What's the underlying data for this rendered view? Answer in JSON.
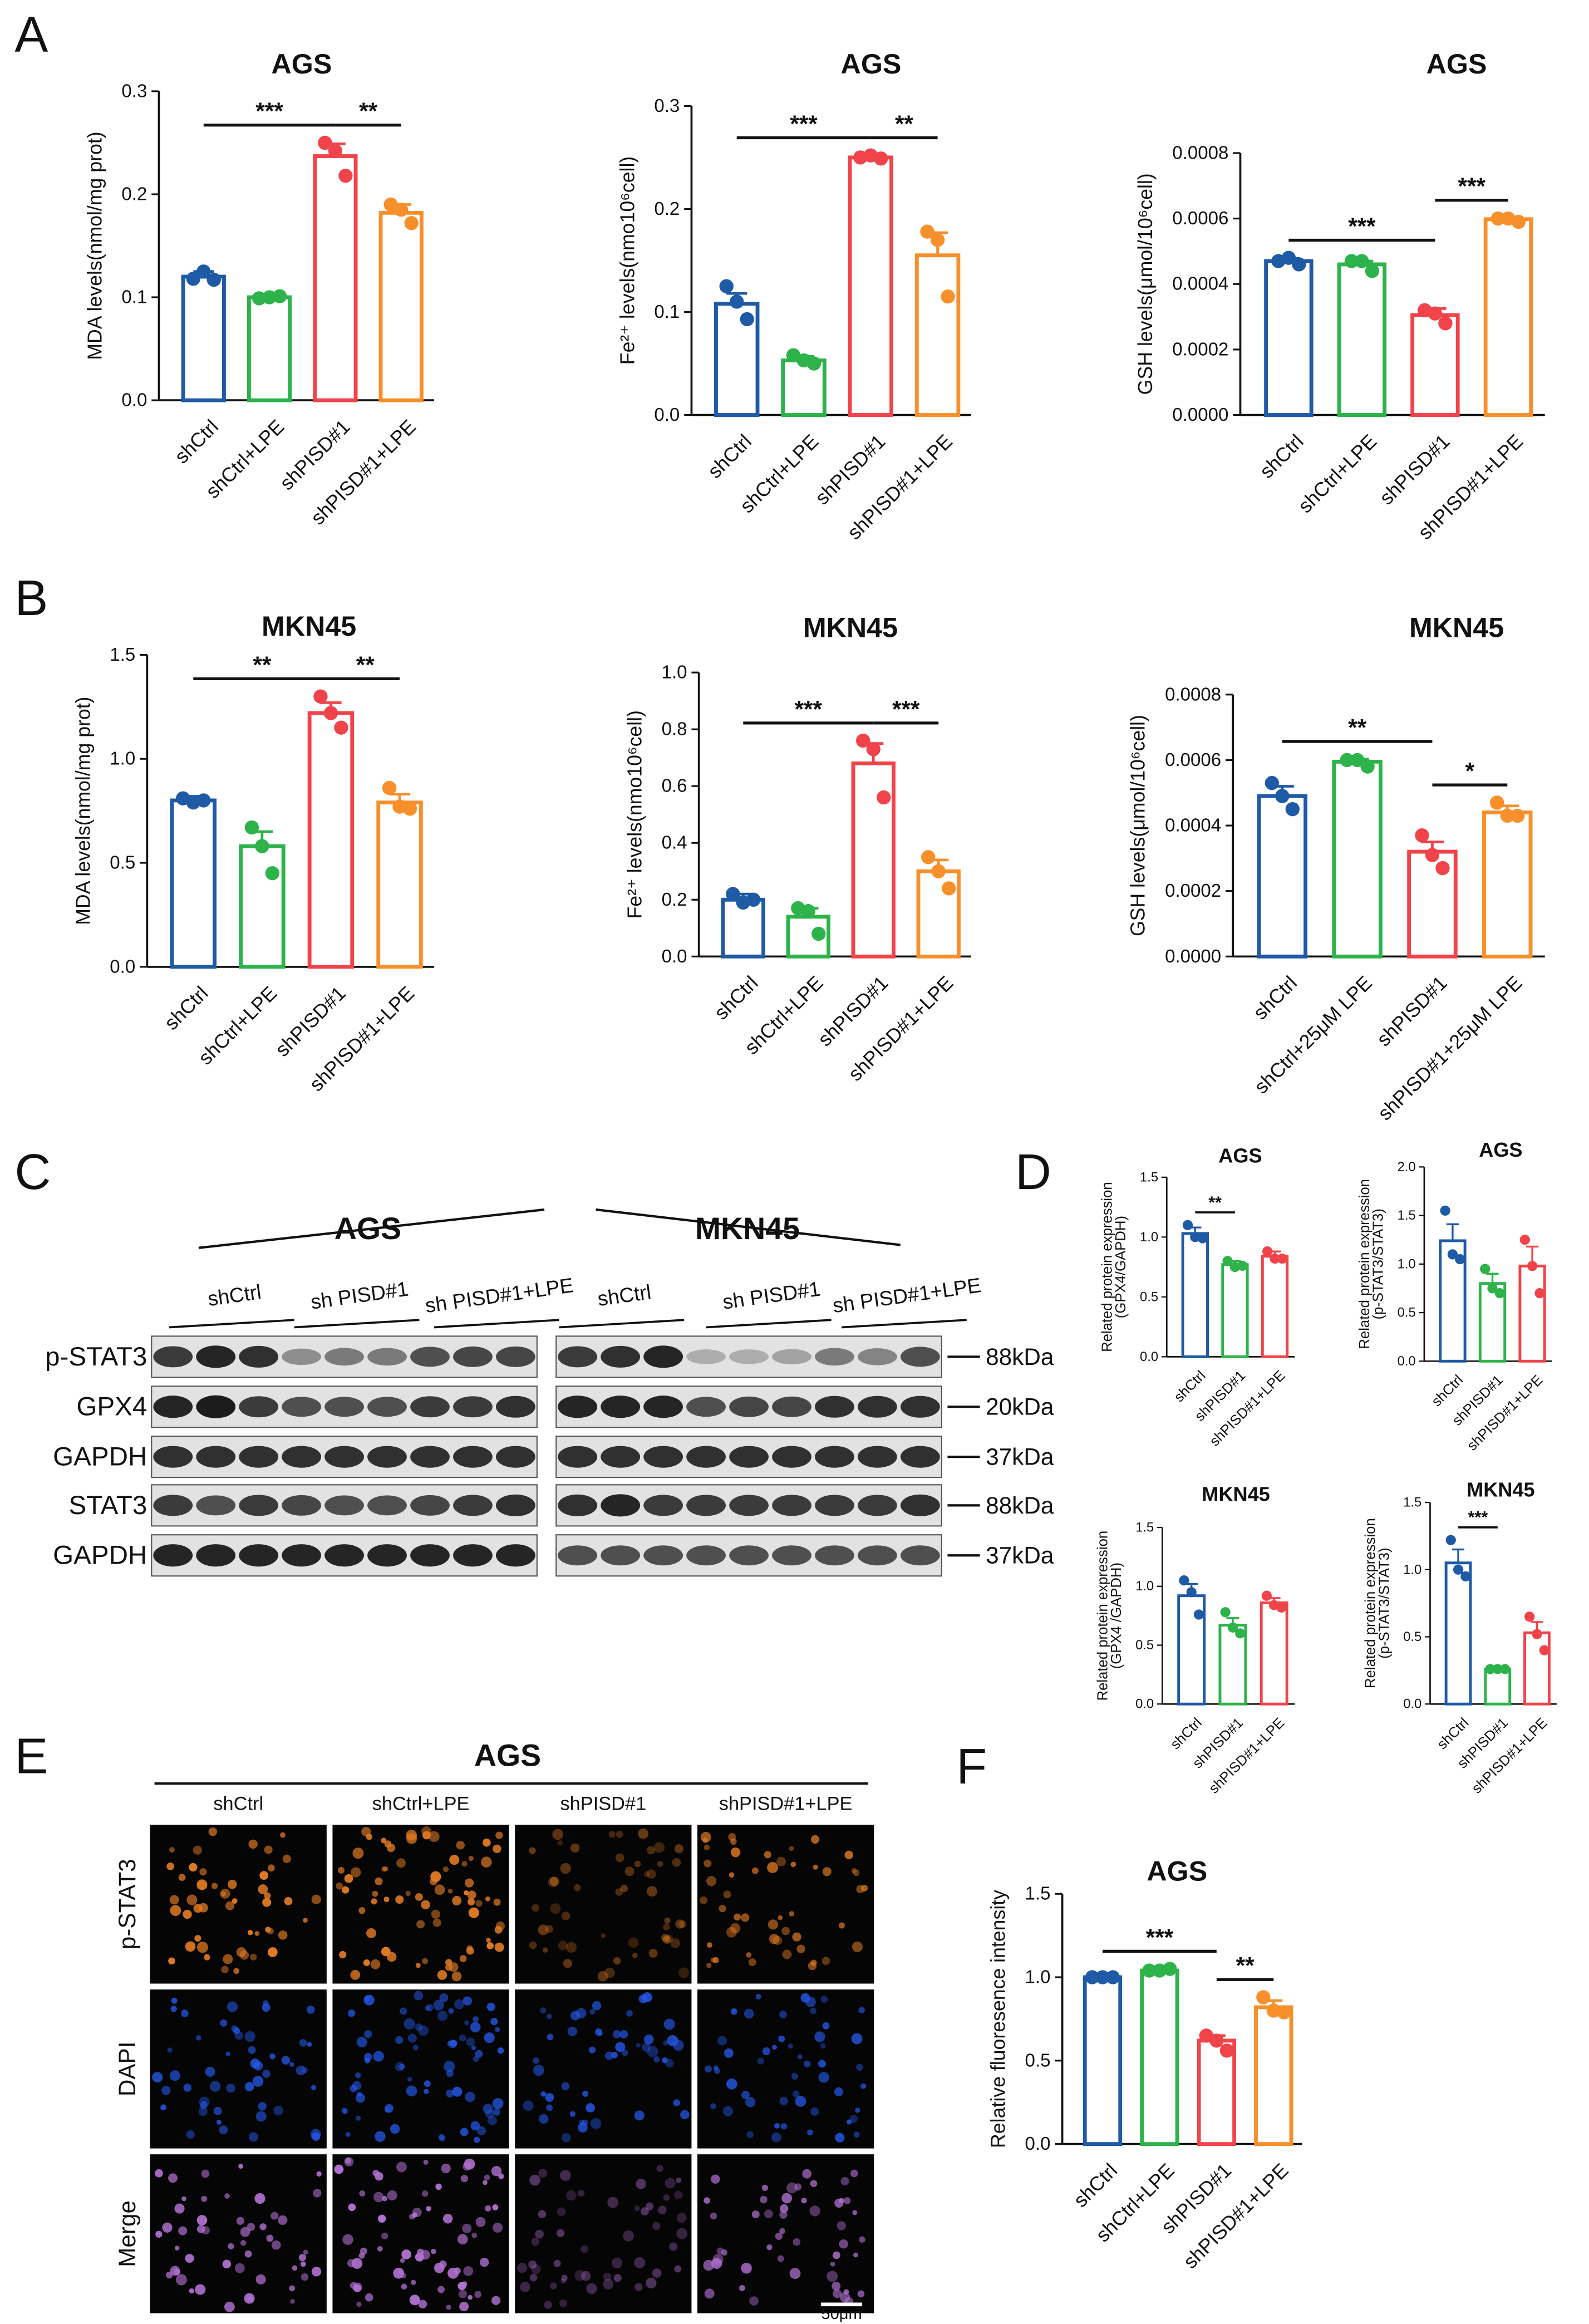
{
  "panels": [
    "A",
    "B",
    "C",
    "D",
    "E",
    "F"
  ],
  "chart_data": [
    {
      "type": "bar",
      "title": "AGS",
      "ylabel": "MDA levels(nmol/mg prot)",
      "categories": [
        "shCtrl",
        "shCtrl+LPE",
        "shPISD#1",
        "shPISD#1+LPE"
      ],
      "colors": [
        "#1f5aa6",
        "#2db34a",
        "#f0444a",
        "#f7902a"
      ],
      "values": [
        0.12,
        0.1,
        0.237,
        0.182
      ],
      "errors": [
        0.005,
        0.002,
        0.012,
        0.008
      ],
      "points": [
        [
          0.118,
          0.125,
          0.117
        ],
        [
          0.099,
          0.1,
          0.101
        ],
        [
          0.25,
          0.242,
          0.218
        ],
        [
          0.19,
          0.185,
          0.172
        ]
      ],
      "ylim": [
        0,
        0.3
      ],
      "yticks": [
        {
          "value": 0,
          "label": "0.0"
        },
        0.1,
        0.2,
        0.3
      ],
      "annotations": [
        {
          "label": "***",
          "from": "shCtrl",
          "to": "shPISD#1"
        },
        {
          "label": "**",
          "from": "shPISD#1",
          "to": "shPISD#1+LPE"
        }
      ]
    },
    {
      "type": "bar",
      "title": "AGS",
      "ylabel": "Fe²⁺ levels(nmo10⁶cell)",
      "categories": [
        "shCtrl",
        "shCtrl+LPE",
        "shPISD#1",
        "shPISD#1+LPE"
      ],
      "colors": [
        "#1f5aa6",
        "#2db34a",
        "#f0444a",
        "#f7902a"
      ],
      "values": [
        0.108,
        0.053,
        0.25,
        0.155
      ],
      "errors": [
        0.01,
        0.004,
        0.002,
        0.022
      ],
      "points": [
        [
          0.125,
          0.11,
          0.093
        ],
        [
          0.058,
          0.053,
          0.05
        ],
        [
          0.25,
          0.252,
          0.249
        ],
        [
          0.178,
          0.17,
          0.115
        ]
      ],
      "ylim": [
        0,
        0.3
      ],
      "yticks": [
        {
          "value": 0,
          "label": "0.0"
        },
        0.1,
        0.2,
        0.3
      ],
      "annotations": [
        {
          "label": "***",
          "from": "shCtrl",
          "to": "shPISD#1"
        },
        {
          "label": "**",
          "from": "shPISD#1",
          "to": "shPISD#1+LPE"
        }
      ]
    },
    {
      "type": "bar",
      "title": "AGS",
      "ylabel": "GSH levels(μmol/10⁶cell)",
      "categories": [
        "shCtrl",
        "shCtrl+LPE",
        "shPISD#1",
        "shPISD#1+LPE"
      ],
      "colors": [
        "#1f5aa6",
        "#2db34a",
        "#f0444a",
        "#f7902a"
      ],
      "values": [
        0.00047,
        0.00046,
        0.000305,
        0.000598
      ],
      "errors": [
        8e-06,
        1e-05,
        2e-05,
        4e-06
      ],
      "points": [
        [
          0.00047,
          0.00048,
          0.00046
        ],
        [
          0.00047,
          0.00047,
          0.00044
        ],
        [
          0.00032,
          0.00031,
          0.00028
        ],
        [
          0.0006,
          0.0006,
          0.00059
        ]
      ],
      "ylim": [
        0,
        0.0008
      ],
      "yticks": [
        {
          "value": 0,
          "label": "0.0000"
        },
        {
          "value": 0.0002,
          "label": "0.0002"
        },
        {
          "value": 0.0004,
          "label": "0.0004"
        },
        {
          "value": 0.0006,
          "label": "0.0006"
        },
        {
          "value": 0.0008,
          "label": "0.0008"
        }
      ],
      "annotations": [
        {
          "label": "***",
          "from": "shCtrl",
          "to": "shPISD#1"
        },
        {
          "label": "***",
          "from": "shPISD#1",
          "to": "shPISD#1+LPE"
        }
      ]
    },
    {
      "type": "bar",
      "title": "MKN45",
      "ylabel": "MDA levels(nmol/mg prot)",
      "categories": [
        "shCtrl",
        "shCtrl+LPE",
        "shPISD#1",
        "shPISD#1+LPE"
      ],
      "colors": [
        "#1f5aa6",
        "#2db34a",
        "#f0444a",
        "#f7902a"
      ],
      "values": [
        0.8,
        0.58,
        1.22,
        0.79
      ],
      "errors": [
        0.02,
        0.07,
        0.05,
        0.04
      ],
      "points": [
        [
          0.81,
          0.79,
          0.8
        ],
        [
          0.67,
          0.58,
          0.45
        ],
        [
          1.3,
          1.22,
          1.15
        ],
        [
          0.86,
          0.77,
          0.76
        ]
      ],
      "ylim": [
        0,
        1.5
      ],
      "yticks": [
        {
          "value": 0,
          "label": "0.0"
        },
        0.5,
        {
          "value": 1,
          "label": "1.0"
        },
        1.5
      ],
      "annotations": [
        {
          "label": "**",
          "from": "shCtrl",
          "to": "shPISD#1"
        },
        {
          "label": "**",
          "from": "shPISD#1",
          "to": "shPISD#1+LPE"
        }
      ]
    },
    {
      "type": "bar",
      "title": "MKN45",
      "ylabel": "Fe²⁺ levels(nmo10⁶cell)",
      "categories": [
        "shCtrl",
        "shCtrl+LPE",
        "shPISD#1",
        "shPISD#1+LPE"
      ],
      "colors": [
        "#1f5aa6",
        "#2db34a",
        "#f0444a",
        "#f7902a"
      ],
      "values": [
        0.2,
        0.14,
        0.68,
        0.3
      ],
      "errors": [
        0.02,
        0.03,
        0.07,
        0.04
      ],
      "points": [
        [
          0.22,
          0.19,
          0.2
        ],
        [
          0.17,
          0.16,
          0.08
        ],
        [
          0.76,
          0.73,
          0.56
        ],
        [
          0.35,
          0.3,
          0.24
        ]
      ],
      "ylim": [
        0,
        1
      ],
      "yticks": [
        {
          "value": 0,
          "label": "0.0"
        },
        0.2,
        0.4,
        0.6,
        0.8,
        {
          "value": 1,
          "label": "1.0"
        }
      ],
      "annotations": [
        {
          "label": "***",
          "from": "shCtrl",
          "to": "shPISD#1"
        },
        {
          "label": "***",
          "from": "shPISD#1",
          "to": "shPISD#1+LPE"
        }
      ]
    },
    {
      "type": "bar",
      "title": "MKN45",
      "ylabel": "GSH levels(μmol/10⁶cell)",
      "categories": [
        "shCtrl",
        "shCtrl+25μM LPE",
        "shPISD#1",
        "shPISD#1+25μM LPE"
      ],
      "colors": [
        "#1f5aa6",
        "#2db34a",
        "#f0444a",
        "#f7902a"
      ],
      "values": [
        0.00049,
        0.000595,
        0.00032,
        0.00044
      ],
      "errors": [
        3e-05,
        8e-06,
        3e-05,
        2e-05
      ],
      "points": [
        [
          0.00053,
          0.00049,
          0.00045
        ],
        [
          0.0006,
          0.0006,
          0.00058
        ],
        [
          0.00037,
          0.00031,
          0.00027
        ],
        [
          0.00047,
          0.00043,
          0.00043
        ]
      ],
      "ylim": [
        0,
        0.0008
      ],
      "yticks": [
        {
          "value": 0,
          "label": "0.0000"
        },
        {
          "value": 0.0002,
          "label": "0.0002"
        },
        {
          "value": 0.0004,
          "label": "0.0004"
        },
        {
          "value": 0.0006,
          "label": "0.0006"
        },
        {
          "value": 0.0008,
          "label": "0.0008"
        }
      ],
      "annotations": [
        {
          "label": "**",
          "from": "shCtrl",
          "to": "shPISD#1"
        },
        {
          "label": "*",
          "from": "shPISD#1",
          "to": "shPISD#1+25μM LPE"
        }
      ]
    },
    {
      "type": "bar",
      "title": "AGS",
      "ylabel": [
        "Related protein expression",
        "(GPX4/GAPDH)"
      ],
      "categories": [
        "shCtrl",
        "shPISD#1",
        "shPISD#1+LPE"
      ],
      "colors": [
        "#1f5aa6",
        "#2db34a",
        "#f0444a"
      ],
      "values": [
        1.03,
        0.77,
        0.84
      ],
      "errors": [
        0.05,
        0.03,
        0.04
      ],
      "points": [
        [
          1.1,
          1.0,
          0.99
        ],
        [
          0.8,
          0.75,
          0.76
        ],
        [
          0.88,
          0.82,
          0.82
        ]
      ],
      "ylim": [
        0,
        1.5
      ],
      "yticks": [
        {
          "value": 0,
          "label": "0.0"
        },
        0.5,
        {
          "value": 1,
          "label": "1.0"
        },
        1.5
      ],
      "annotations": [
        {
          "label": "**",
          "from": "shCtrl",
          "to": "shPISD#1"
        }
      ]
    },
    {
      "type": "bar",
      "title": "AGS",
      "ylabel": [
        "Related protein expression",
        "(p-STAT3/STAT3)"
      ],
      "categories": [
        "shCtrl",
        "shPISD#1",
        "shPISD#1+LPE"
      ],
      "colors": [
        "#1f5aa6",
        "#2db34a",
        "#f0444a"
      ],
      "values": [
        1.24,
        0.8,
        0.98
      ],
      "errors": [
        0.17,
        0.1,
        0.2
      ],
      "points": [
        [
          1.55,
          1.1,
          1.05
        ],
        [
          0.95,
          0.75,
          0.7
        ],
        [
          1.25,
          0.98,
          0.7
        ]
      ],
      "ylim": [
        0,
        2
      ],
      "yticks": [
        {
          "value": 0,
          "label": "0.0"
        },
        0.5,
        {
          "value": 1,
          "label": "1.0"
        },
        1.5,
        {
          "value": 2,
          "label": "2.0"
        }
      ],
      "annotations": []
    },
    {
      "type": "bar",
      "title": "MKN45",
      "ylabel": [
        "Related protein expression",
        "(GPX4 /GAPDH)"
      ],
      "categories": [
        "shCtrl",
        "shPISD#1",
        "shPISD#1+LPE"
      ],
      "colors": [
        "#1f5aa6",
        "#2db34a",
        "#f0444a"
      ],
      "values": [
        0.92,
        0.67,
        0.86
      ],
      "errors": [
        0.1,
        0.06,
        0.04
      ],
      "points": [
        [
          1.05,
          0.95,
          0.76
        ],
        [
          0.78,
          0.65,
          0.6
        ],
        [
          0.92,
          0.84,
          0.82
        ]
      ],
      "ylim": [
        0,
        1.5
      ],
      "yticks": [
        {
          "value": 0,
          "label": "0.0"
        },
        0.5,
        {
          "value": 1,
          "label": "1.0"
        },
        1.5
      ],
      "annotations": []
    },
    {
      "type": "bar",
      "title": "MKN45",
      "ylabel": [
        "Related protein expression",
        "(p-STAT3/STAT3)"
      ],
      "categories": [
        "shCtrl",
        "shPISD#1",
        "shPISD#1+LPE"
      ],
      "colors": [
        "#1f5aa6",
        "#2db34a",
        "#f0444a"
      ],
      "values": [
        1.05,
        0.26,
        0.53
      ],
      "errors": [
        0.1,
        0.005,
        0.08
      ],
      "points": [
        [
          1.22,
          1.0,
          0.95
        ],
        [
          0.26,
          0.26,
          0.26
        ],
        [
          0.65,
          0.52,
          0.4
        ]
      ],
      "ylim": [
        0,
        1.5
      ],
      "yticks": [
        {
          "value": 0,
          "label": "0.0"
        },
        0.5,
        {
          "value": 1,
          "label": "1.0"
        },
        1.5
      ],
      "annotations": [
        {
          "label": "***",
          "from": "shCtrl",
          "to": "shPISD#1"
        }
      ]
    },
    {
      "type": "bar",
      "title": "AGS",
      "ylabel": "Relative fluoresence intensity",
      "categories": [
        "shCtrl",
        "shCtrl+LPE",
        "shPISD#1",
        "shPISD#1+LPE"
      ],
      "colors": [
        "#1f5aa6",
        "#2db34a",
        "#f0444a",
        "#f7902a"
      ],
      "values": [
        1.0,
        1.04,
        0.62,
        0.82
      ],
      "errors": [
        0.005,
        0.005,
        0.03,
        0.04
      ],
      "points": [
        [
          1.0,
          1.0,
          1.0
        ],
        [
          1.04,
          1.04,
          1.05
        ],
        [
          0.65,
          0.62,
          0.56
        ],
        [
          0.88,
          0.8,
          0.79
        ]
      ],
      "ylim": [
        0,
        1.5
      ],
      "yticks": [
        {
          "value": 0,
          "label": "0.0"
        },
        0.5,
        {
          "value": 1,
          "label": "1.0"
        },
        1.5
      ],
      "annotations": [
        {
          "label": "***",
          "from": "shCtrl",
          "to": "shPISD#1"
        },
        {
          "label": "**",
          "from": "shPISD#1",
          "to": "shPISD#1+LPE"
        }
      ]
    }
  ],
  "blot": {
    "groups": [
      {
        "cell": "AGS",
        "conditions": [
          "shCtrl",
          "sh PISD#1",
          "sh PISD#1+LPE"
        ]
      },
      {
        "cell": "MKN45",
        "conditions": [
          "shCtrl",
          "sh PISD#1",
          "sh PISD#1+LPE"
        ]
      }
    ],
    "rows": [
      {
        "protein": "p-STAT3",
        "size": "88kDa"
      },
      {
        "protein": "GPX4",
        "size": "20kDa"
      },
      {
        "protein": "GAPDH",
        "size": "37kDa"
      },
      {
        "protein": "STAT3",
        "size": "88kDa"
      },
      {
        "protein": "GAPDH",
        "size": "37kDa"
      }
    ]
  },
  "imaging": {
    "cell": "AGS",
    "conditions": [
      "shCtrl",
      "shCtrl+LPE",
      "shPISD#1",
      "shPISD#1+LPE"
    ],
    "channels": [
      "p-STAT3",
      "DAPI",
      "Merge"
    ],
    "scale_bar": "50μm"
  }
}
